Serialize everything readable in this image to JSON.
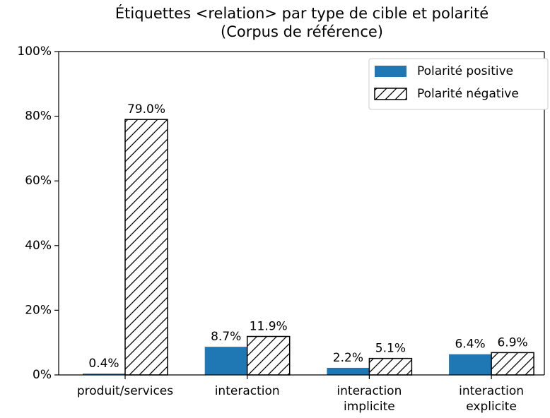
{
  "chart_data": {
    "type": "bar",
    "title": "Étiquettes <relation> par type de cible et polarité\n(Corpus de référence)",
    "categories": [
      "produit/services",
      "interaction",
      "interaction\nimplicite",
      "interaction\nexplicite"
    ],
    "series": [
      {
        "name": "Polarité positive",
        "color": "#1f77b4",
        "values": [
          0.4,
          8.7,
          2.2,
          6.4
        ],
        "value_labels": [
          "0.4%",
          "8.7%",
          "2.2%",
          "6.4%"
        ]
      },
      {
        "name": "Polarité négative",
        "color": "#ffffff",
        "hatch": "/",
        "values": [
          79.0,
          11.9,
          5.1,
          6.9
        ],
        "value_labels": [
          "79.0%",
          "11.9%",
          "5.1%",
          "6.9%"
        ]
      }
    ],
    "ylim": [
      0,
      100
    ],
    "yticks": [
      {
        "value": 0,
        "label": "0%"
      },
      {
        "value": 20,
        "label": "20%"
      },
      {
        "value": 40,
        "label": "40%"
      },
      {
        "value": 60,
        "label": "60%"
      },
      {
        "value": 80,
        "label": "80%"
      },
      {
        "value": 100,
        "label": "100%"
      }
    ],
    "grid": false,
    "legend": "upper right"
  }
}
